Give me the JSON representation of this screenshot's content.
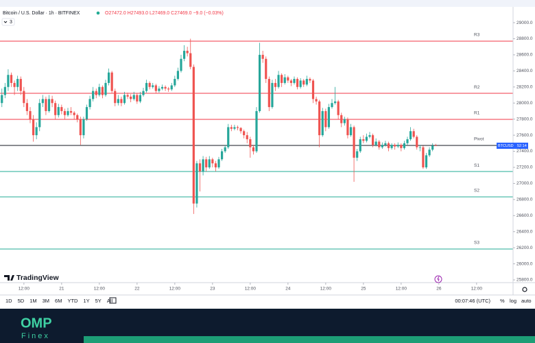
{
  "header": {
    "symbol_title": "Bitcoin / U.S. Dollar · 1h · BITFINEX",
    "ohlc": "O27472.0 H27493.0 L27469.0 C27469.0 −9.0 (−0.03%)",
    "indicators_count": 3,
    "logo": "TradingView"
  },
  "price_tag": {
    "symbol": "BTCUSD",
    "countdown": "52:14"
  },
  "toolbar": {
    "ranges": [
      "1D",
      "5D",
      "1M",
      "3M",
      "6M",
      "YTD",
      "1Y",
      "5Y",
      "All"
    ],
    "clock": "00:07:46 (UTC)",
    "percent": "%",
    "log": "log",
    "auto": "auto"
  },
  "footer": {
    "brand": "OMP",
    "sub": "Finex"
  },
  "chart_data": {
    "type": "candlestick",
    "up_color": "#26a69a",
    "down_color": "#ef5350",
    "xlim": [
      4.4,
      167.6
    ],
    "ylim": [
      25766,
      29171
    ],
    "xticks": [
      {
        "value": 12,
        "label": "12:00"
      },
      {
        "value": 24,
        "label": "21"
      },
      {
        "value": 36,
        "label": "12:00"
      },
      {
        "value": 48,
        "label": "22"
      },
      {
        "value": 60,
        "label": "12:00"
      },
      {
        "value": 72,
        "label": "23"
      },
      {
        "value": 84,
        "label": "12:00"
      },
      {
        "value": 96,
        "label": "24"
      },
      {
        "value": 108,
        "label": "12:00"
      },
      {
        "value": 120,
        "label": "25"
      },
      {
        "value": 132,
        "label": "12:00"
      },
      {
        "value": 144,
        "label": "26"
      },
      {
        "value": 156,
        "label": "12:00"
      }
    ],
    "yticks": [
      {
        "value": 25800,
        "label": "25800.0"
      },
      {
        "value": 26000,
        "label": "26000.0"
      },
      {
        "value": 26200,
        "label": "26200.0"
      },
      {
        "value": 26400,
        "label": "26400.0"
      },
      {
        "value": 26600,
        "label": "26600.0"
      },
      {
        "value": 26800,
        "label": "26800.0"
      },
      {
        "value": 27000,
        "label": "27000.0"
      },
      {
        "value": 27200,
        "label": "27200.0"
      },
      {
        "value": 27400,
        "label": "27400.0"
      },
      {
        "value": 27600,
        "label": "27600.0"
      },
      {
        "value": 27800,
        "label": "27800.0"
      },
      {
        "value": 28000,
        "label": "28000.0"
      },
      {
        "value": 28200,
        "label": "28200.0"
      },
      {
        "value": 28400,
        "label": "28400.0"
      },
      {
        "value": 28600,
        "label": "28600.0"
      },
      {
        "value": 28800,
        "label": "28800.0"
      },
      {
        "value": 29000,
        "label": "29000.0"
      }
    ],
    "levels": [
      {
        "name": "R3",
        "value": 28770,
        "color": "#f23645"
      },
      {
        "name": "R2",
        "value": 28121,
        "color": "#f23645"
      },
      {
        "name": "R1",
        "value": 27797,
        "color": "#f23645"
      },
      {
        "name": "Pivot",
        "value": 27473,
        "color": "#131722"
      },
      {
        "name": "S1",
        "value": 27148,
        "color": "#22ab94"
      },
      {
        "name": "S2",
        "value": 26833,
        "color": "#22ab94"
      },
      {
        "name": "S3",
        "value": 26184,
        "color": "#22ab94"
      }
    ],
    "x": [
      5,
      6,
      7,
      8,
      9,
      10,
      11,
      12,
      13,
      14,
      15,
      16,
      17,
      18,
      19,
      20,
      21,
      22,
      23,
      24,
      25,
      26,
      27,
      28,
      29,
      30,
      31,
      32,
      33,
      34,
      35,
      36,
      37,
      38,
      39,
      40,
      41,
      42,
      43,
      44,
      45,
      46,
      47,
      48,
      49,
      50,
      51,
      52,
      53,
      54,
      55,
      56,
      57,
      58,
      59,
      60,
      61,
      62,
      63,
      64,
      65,
      66,
      67,
      68,
      69,
      70,
      71,
      72,
      73,
      74,
      75,
      76,
      77,
      78,
      79,
      80,
      81,
      82,
      83,
      84,
      85,
      86,
      87,
      88,
      89,
      90,
      91,
      92,
      93,
      94,
      95,
      96,
      97,
      98,
      99,
      100,
      101,
      102,
      103,
      104,
      105,
      106,
      107,
      108,
      109,
      110,
      111,
      112,
      113,
      114,
      115,
      116,
      117,
      118,
      119,
      120,
      121,
      122,
      123,
      124,
      125,
      126,
      127,
      128,
      129,
      130,
      131,
      132,
      133,
      134,
      135,
      136,
      137,
      138,
      139,
      140,
      141,
      142,
      143
    ],
    "candles": [
      [
        28000,
        28180,
        27950,
        28100
      ],
      [
        28100,
        28250,
        28060,
        28200
      ],
      [
        28200,
        28420,
        28150,
        28350
      ],
      [
        28350,
        28380,
        28200,
        28250
      ],
      [
        28250,
        28280,
        28100,
        28200
      ],
      [
        28200,
        28340,
        28150,
        28300
      ],
      [
        28300,
        28330,
        28100,
        28150
      ],
      [
        28150,
        28200,
        27950,
        28000
      ],
      [
        28000,
        28050,
        27850,
        27900
      ],
      [
        27900,
        27950,
        27750,
        27800
      ],
      [
        27800,
        27850,
        27520,
        27600
      ],
      [
        27600,
        27760,
        27550,
        27700
      ],
      [
        27700,
        28050,
        27650,
        28000
      ],
      [
        28000,
        28100,
        27950,
        28050
      ],
      [
        28050,
        28080,
        27850,
        27900
      ],
      [
        27900,
        28100,
        27880,
        28050
      ],
      [
        28050,
        28090,
        27950,
        28000
      ],
      [
        28000,
        28030,
        27800,
        27850
      ],
      [
        27850,
        27990,
        27820,
        27950
      ],
      [
        27950,
        27980,
        27860,
        27900
      ],
      [
        27900,
        27930,
        27800,
        27850
      ],
      [
        27850,
        27940,
        27830,
        27900
      ],
      [
        27900,
        27950,
        27850,
        27880
      ],
      [
        27880,
        27900,
        27800,
        27850
      ],
      [
        27850,
        27870,
        27760,
        27800
      ],
      [
        27800,
        27830,
        27480,
        27600
      ],
      [
        27600,
        27830,
        27560,
        27800
      ],
      [
        27800,
        27980,
        27780,
        27950
      ],
      [
        27950,
        28090,
        27920,
        28050
      ],
      [
        28050,
        28200,
        28020,
        28150
      ],
      [
        28150,
        28180,
        28060,
        28100
      ],
      [
        28100,
        28240,
        28080,
        28200
      ],
      [
        28200,
        28220,
        28060,
        28100
      ],
      [
        28100,
        28290,
        28080,
        28250
      ],
      [
        28250,
        28430,
        28220,
        28380
      ],
      [
        28380,
        28400,
        28120,
        28150
      ],
      [
        28150,
        28180,
        27960,
        28000
      ],
      [
        28000,
        28100,
        27970,
        28050
      ],
      [
        28050,
        28080,
        27960,
        28000
      ],
      [
        28000,
        28140,
        27980,
        28100
      ],
      [
        28100,
        28130,
        28050,
        28080
      ],
      [
        28080,
        28110,
        28010,
        28050
      ],
      [
        28050,
        28140,
        28030,
        28100
      ],
      [
        28100,
        28120,
        27990,
        28020
      ],
      [
        28020,
        28140,
        28000,
        28100
      ],
      [
        28100,
        28190,
        28080,
        28150
      ],
      [
        28150,
        28290,
        28130,
        28250
      ],
      [
        28250,
        28270,
        28170,
        28200
      ],
      [
        28200,
        28250,
        28180,
        28220
      ],
      [
        28220,
        28240,
        28120,
        28150
      ],
      [
        28150,
        28210,
        28130,
        28180
      ],
      [
        28180,
        28230,
        28160,
        28200
      ],
      [
        28200,
        28220,
        28150,
        28180
      ],
      [
        28180,
        28200,
        28140,
        28170
      ],
      [
        28170,
        28250,
        28150,
        28220
      ],
      [
        28220,
        28340,
        28200,
        28300
      ],
      [
        28300,
        28440,
        28280,
        28400
      ],
      [
        28400,
        28600,
        28380,
        28550
      ],
      [
        28550,
        28720,
        28520,
        28650
      ],
      [
        28650,
        28700,
        28580,
        28620
      ],
      [
        28620,
        28800,
        28420,
        28450
      ],
      [
        28450,
        28480,
        26620,
        26750
      ],
      [
        26750,
        27280,
        26700,
        27250
      ],
      [
        27250,
        27300,
        26900,
        27150
      ],
      [
        27150,
        27340,
        27100,
        27300
      ],
      [
        27300,
        27330,
        27150,
        27200
      ],
      [
        27200,
        27340,
        27180,
        27300
      ],
      [
        27300,
        27320,
        27200,
        27250
      ],
      [
        27250,
        27280,
        27150,
        27200
      ],
      [
        27200,
        27330,
        27180,
        27300
      ],
      [
        27300,
        27430,
        27280,
        27400
      ],
      [
        27400,
        27480,
        27380,
        27450
      ],
      [
        27450,
        27740,
        27430,
        27700
      ],
      [
        27700,
        27730,
        27650,
        27680
      ],
      [
        27680,
        27730,
        27660,
        27700
      ],
      [
        27700,
        27720,
        27660,
        27690
      ],
      [
        27690,
        27700,
        27620,
        27650
      ],
      [
        27650,
        27670,
        27560,
        27600
      ],
      [
        27600,
        27640,
        27500,
        27550
      ],
      [
        27550,
        27580,
        27320,
        27450
      ],
      [
        27450,
        27480,
        27360,
        27400
      ],
      [
        27400,
        27950,
        27380,
        27900
      ],
      [
        27900,
        28750,
        27880,
        28600
      ],
      [
        28600,
        28650,
        28500,
        28550
      ],
      [
        28550,
        28580,
        28250,
        28300
      ],
      [
        28300,
        28330,
        27900,
        27950
      ],
      [
        27950,
        28290,
        27930,
        28250
      ],
      [
        28250,
        28300,
        28150,
        28200
      ],
      [
        28200,
        28400,
        28180,
        28350
      ],
      [
        28350,
        28370,
        28200,
        28250
      ],
      [
        28250,
        28360,
        28230,
        28320
      ],
      [
        28320,
        28340,
        28250,
        28280
      ],
      [
        28280,
        28300,
        28210,
        28250
      ],
      [
        28250,
        28330,
        28230,
        28300
      ],
      [
        28300,
        28320,
        28170,
        28200
      ],
      [
        28200,
        28310,
        28180,
        28280
      ],
      [
        28280,
        28300,
        28200,
        28230
      ],
      [
        28230,
        28340,
        28210,
        28300
      ],
      [
        28300,
        28320,
        28250,
        28280
      ],
      [
        28280,
        28300,
        28000,
        28050
      ],
      [
        28050,
        28080,
        27980,
        28020
      ],
      [
        28020,
        28040,
        27450,
        27600
      ],
      [
        27600,
        27940,
        27580,
        27900
      ],
      [
        27900,
        27930,
        27650,
        27700
      ],
      [
        27700,
        27990,
        27680,
        27950
      ],
      [
        27950,
        28050,
        27930,
        28000
      ],
      [
        28000,
        28200,
        27980,
        28020
      ],
      [
        28020,
        28040,
        27800,
        27850
      ],
      [
        27850,
        27880,
        27700,
        27750
      ],
      [
        27750,
        27830,
        27720,
        27800
      ],
      [
        27800,
        27820,
        27560,
        27600
      ],
      [
        27600,
        27740,
        27580,
        27700
      ],
      [
        27700,
        27720,
        27020,
        27320
      ],
      [
        27320,
        27430,
        27280,
        27400
      ],
      [
        27400,
        27580,
        27380,
        27550
      ],
      [
        27550,
        27600,
        27500,
        27530
      ],
      [
        27530,
        27620,
        27510,
        27580
      ],
      [
        27580,
        27640,
        27560,
        27600
      ],
      [
        27600,
        27620,
        27450,
        27480
      ],
      [
        27480,
        27560,
        27460,
        27520
      ],
      [
        27520,
        27540,
        27420,
        27450
      ],
      [
        27450,
        27510,
        27430,
        27480
      ],
      [
        27480,
        27530,
        27460,
        27500
      ],
      [
        27500,
        27520,
        27400,
        27440
      ],
      [
        27440,
        27500,
        27420,
        27480
      ],
      [
        27480,
        27500,
        27420,
        27460
      ],
      [
        27460,
        27510,
        27440,
        27480
      ],
      [
        27480,
        27500,
        27400,
        27440
      ],
      [
        27440,
        27530,
        27420,
        27500
      ],
      [
        27500,
        27580,
        27480,
        27550
      ],
      [
        27550,
        27700,
        27530,
        27650
      ],
      [
        27650,
        27680,
        27560,
        27580
      ],
      [
        27580,
        27600,
        27420,
        27450
      ],
      [
        27450,
        27480,
        27400,
        27450
      ],
      [
        27450,
        27470,
        27180,
        27200
      ],
      [
        27200,
        27380,
        27180,
        27350
      ],
      [
        27350,
        27450,
        27330,
        27420
      ],
      [
        27420,
        27500,
        27400,
        27470
      ],
      [
        27472,
        27493,
        27469,
        27469
      ]
    ]
  }
}
